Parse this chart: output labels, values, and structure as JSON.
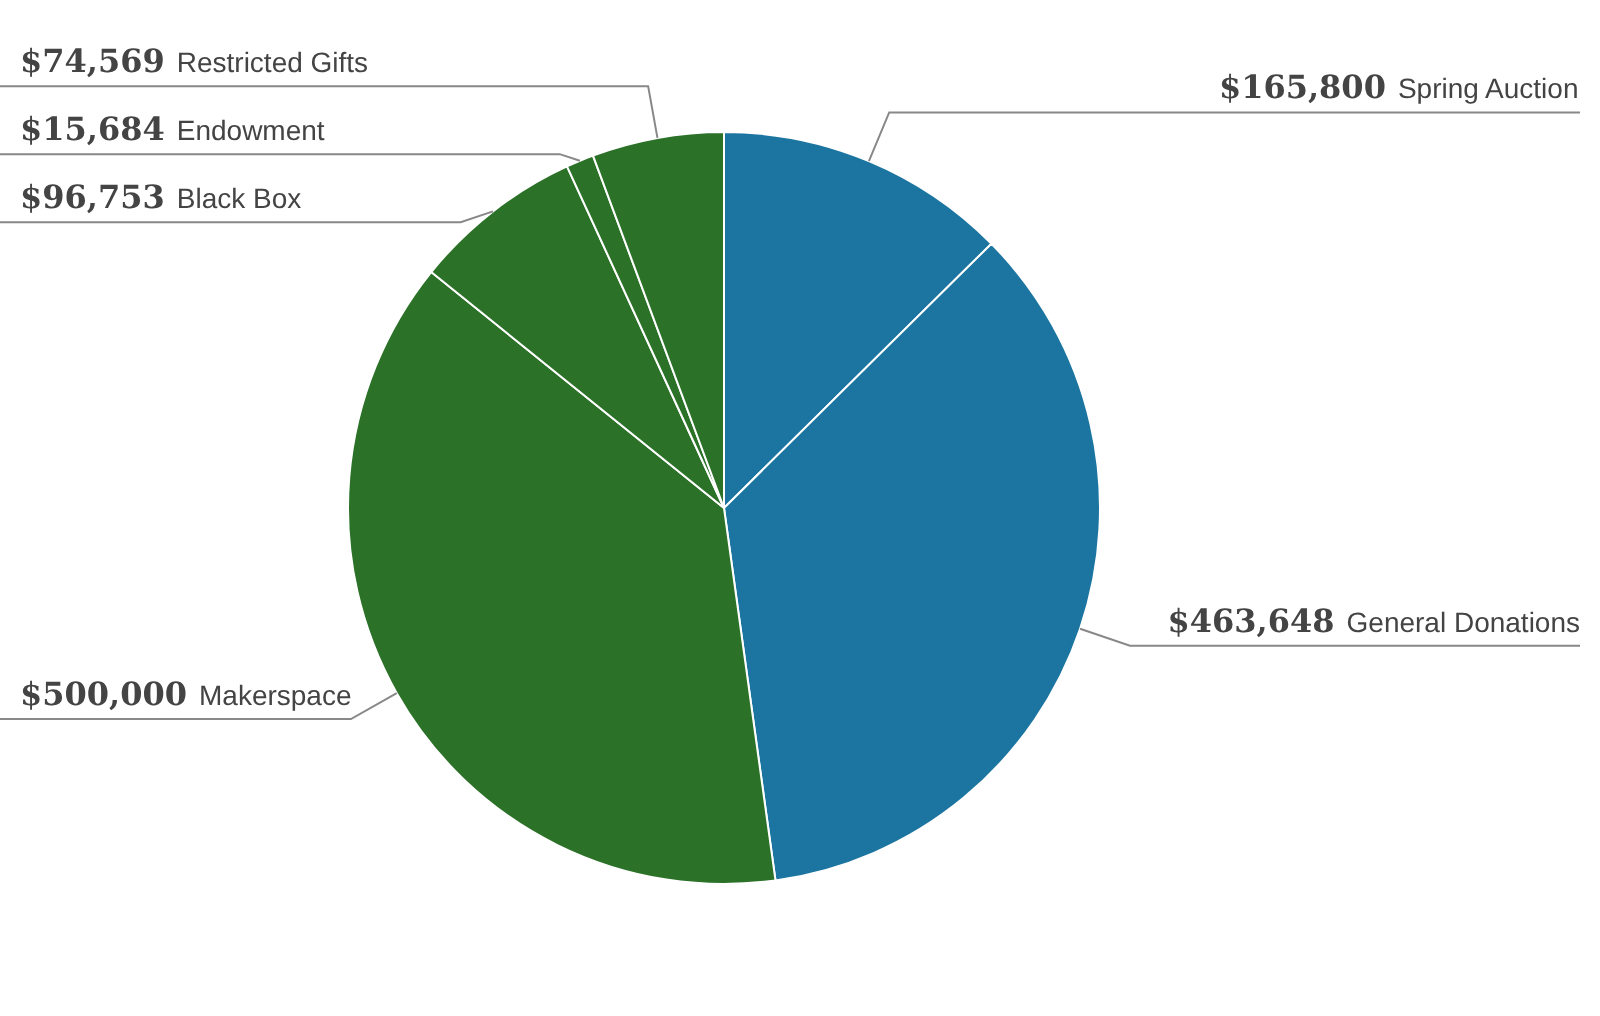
{
  "chart_data": {
    "type": "pie",
    "categories": [
      "Spring Auction",
      "General Donations",
      "Makerspace",
      "Black Box",
      "Endowment",
      "Restricted Gifts"
    ],
    "values": [
      165800,
      463648,
      500000,
      96753,
      15684,
      74569
    ],
    "colors": [
      "#1b75a0",
      "#1b75a0",
      "#2b7128",
      "#2b7128",
      "#2b7128",
      "#2b7128"
    ],
    "value_labels": [
      "$165,800",
      "$463,648",
      "$500,000",
      "$96,753",
      "$15,684",
      "$74,569"
    ]
  }
}
